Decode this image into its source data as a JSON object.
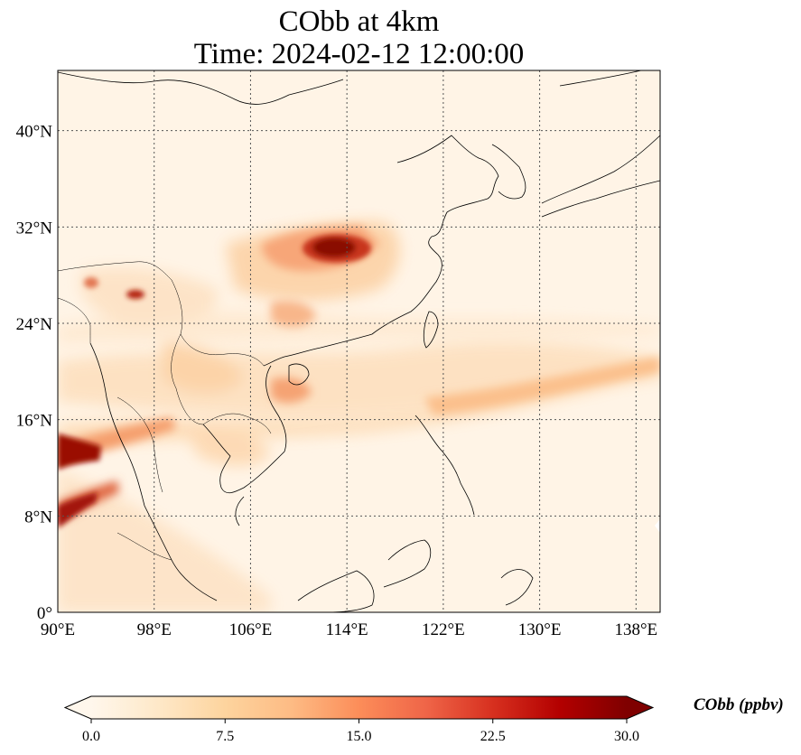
{
  "title": {
    "line1": "CObb at 4km",
    "line2": "Time: 2024-02-12 12:00:00"
  },
  "map": {
    "projection": "PlateCarree",
    "lon_range": [
      90,
      140
    ],
    "lat_range": [
      0,
      45
    ],
    "gridlines": "dotted",
    "lon_ticks": [
      {
        "value": 90,
        "label": "90°E"
      },
      {
        "value": 98,
        "label": "98°E"
      },
      {
        "value": 106,
        "label": "106°E"
      },
      {
        "value": 114,
        "label": "114°E"
      },
      {
        "value": 122,
        "label": "122°E"
      },
      {
        "value": 130,
        "label": "130°E"
      },
      {
        "value": 138,
        "label": "138°E"
      }
    ],
    "lat_ticks": [
      {
        "value": 0,
        "label": "0°"
      },
      {
        "value": 8,
        "label": "8°N"
      },
      {
        "value": 16,
        "label": "16°N"
      },
      {
        "value": 24,
        "label": "24°N"
      },
      {
        "value": 32,
        "label": "32°N"
      },
      {
        "value": 40,
        "label": "40°N"
      }
    ],
    "hotspots": [
      {
        "lon": 113.5,
        "lat": 29.8,
        "value": 30
      },
      {
        "lon": 91.5,
        "lat": 12.8,
        "value": 30
      },
      {
        "lon": 91.0,
        "lat": 9.0,
        "value": 28
      },
      {
        "lon": 96.5,
        "lat": 26.3,
        "value": 24
      },
      {
        "lon": 95.5,
        "lat": 27.5,
        "value": 14
      },
      {
        "lon": 107.5,
        "lat": 18.5,
        "value": 12
      }
    ]
  },
  "colorbar": {
    "label": "CObb (ppbv)",
    "colormap": "OrRd",
    "min": 0.0,
    "max": 30.0,
    "extend": "both",
    "ticks": [
      "0.0",
      "7.5",
      "15.0",
      "22.5",
      "30.0"
    ],
    "colors": [
      "#fff7ec",
      "#fee8c8",
      "#fdd49e",
      "#fdbb84",
      "#fc8d59",
      "#ef6548",
      "#d7301f",
      "#b30000",
      "#7f0000"
    ]
  }
}
